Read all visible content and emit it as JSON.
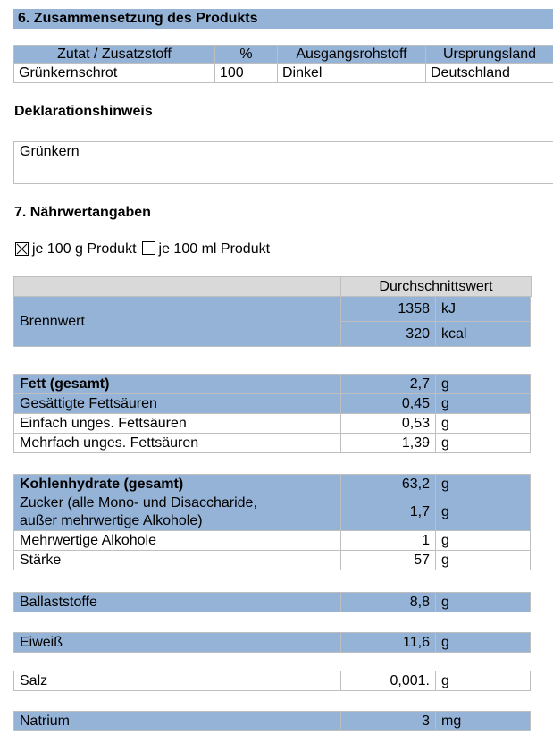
{
  "section6": {
    "title": "6. Zusammensetzung des Produkts"
  },
  "composition": {
    "header": [
      "Zutat / Zusatzstoff",
      "%",
      "Ausgangsrohstoff",
      "Ursprungsland"
    ],
    "rows": [
      [
        "Grünkernschrot",
        "100",
        "Dinkel",
        "Deutschland"
      ]
    ]
  },
  "declaration": {
    "title": "Deklarationshinweis",
    "text": "Grünkern"
  },
  "section7": {
    "title": "7. Nährwertangaben",
    "options": [
      {
        "label": "je 100 g Produkt",
        "checked": true
      },
      {
        "label": "je 100 ml Produkt",
        "checked": false
      }
    ]
  },
  "nutrition": {
    "header": "Durchschnittswert",
    "energy": {
      "label": "Brennwert",
      "rows": [
        {
          "value": "1358",
          "unit": "kJ"
        },
        {
          "value": "320",
          "unit": "kcal"
        }
      ]
    },
    "groups": [
      {
        "rows": [
          {
            "label": "Fett (gesamt)",
            "value": "2,7",
            "unit": "g",
            "bold": true,
            "shaded": true
          },
          {
            "label": "Gesättigte Fettsäuren",
            "value": "0,45",
            "unit": "g",
            "bold": false,
            "shaded": true
          },
          {
            "label": "Einfach unges. Fettsäuren",
            "value": "0,53",
            "unit": "g",
            "bold": false,
            "shaded": false
          },
          {
            "label": "Mehrfach unges. Fettsäuren",
            "value": "1,39",
            "unit": "g",
            "bold": false,
            "shaded": false
          }
        ]
      },
      {
        "rows": [
          {
            "label": "Kohlenhydrate (gesamt)",
            "value": "63,2",
            "unit": "g",
            "bold": true,
            "shaded": true
          },
          {
            "label": "Zucker (alle Mono- und Disaccharide,\naußer mehrwertige Alkohole)",
            "value": "1,7",
            "unit": "g",
            "bold": false,
            "shaded": true
          },
          {
            "label": "Mehrwertige Alkohole",
            "value": "1",
            "unit": "g",
            "bold": false,
            "shaded": false
          },
          {
            "label": "Stärke",
            "value": "57",
            "unit": "g",
            "bold": false,
            "shaded": false
          }
        ]
      },
      {
        "rows": [
          {
            "label": "Ballaststoffe",
            "value": "8,8",
            "unit": "g",
            "bold": false,
            "shaded": true
          }
        ]
      },
      {
        "rows": [
          {
            "label": "Eiweiß",
            "value": "11,6",
            "unit": "g",
            "bold": false,
            "shaded": true
          }
        ]
      },
      {
        "rows": [
          {
            "label": "Salz",
            "value": "0,001.",
            "unit": "g",
            "bold": false,
            "shaded": false
          }
        ]
      },
      {
        "rows": [
          {
            "label": "Natrium",
            "value": "3",
            "unit": "mg",
            "bold": false,
            "shaded": true
          }
        ]
      }
    ]
  }
}
